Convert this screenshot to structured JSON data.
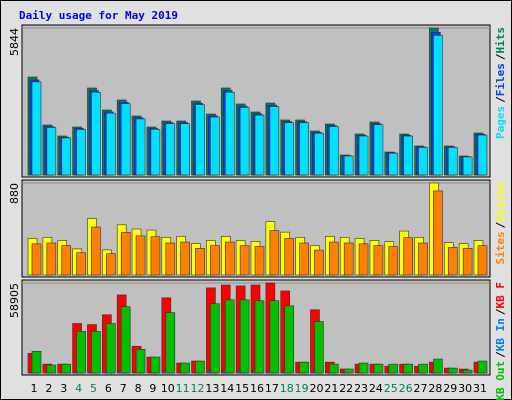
{
  "chart_data": [
    {
      "type": "bar",
      "title": "Daily usage for May 2019",
      "legend_separator": "/",
      "ylim": [
        0,
        5844
      ],
      "yticks": [
        5844
      ],
      "series": [
        {
          "name": "Hits",
          "color": "#00805c",
          "values": [
            3896,
            1988,
            1550,
            1908,
            3459,
            2584,
            2982,
            2346,
            1908,
            2147,
            2147,
            2942,
            2425,
            3459,
            2823,
            2505,
            2862,
            2187,
            2187,
            1749,
            2028,
            795,
            1630,
            2107,
            914,
            1630,
            1153,
            5844,
            1153,
            755,
            1670
          ]
        },
        {
          "name": "Files",
          "color": "#0040ff",
          "values": [
            3779,
            1928,
            1504,
            1851,
            3355,
            2506,
            2893,
            2276,
            1851,
            2083,
            2083,
            2854,
            2352,
            3355,
            2738,
            2430,
            2776,
            2121,
            2121,
            1697,
            1967,
            771,
            1581,
            2044,
            887,
            1581,
            1118,
            5669,
            1118,
            732,
            1620
          ]
        },
        {
          "name": "Pages",
          "color": "#00e0ff",
          "values": [
            3701,
            1889,
            1473,
            1813,
            3286,
            2455,
            2833,
            2229,
            1813,
            2040,
            2040,
            2795,
            2304,
            3286,
            2682,
            2380,
            2719,
            2078,
            2078,
            1662,
            1927,
            755,
            1549,
            2002,
            868,
            1549,
            1095,
            5552,
            1095,
            717,
            1587
          ]
        }
      ]
    },
    {
      "type": "bar",
      "legend_separator": "/",
      "ylim": [
        0,
        880
      ],
      "yticks": [
        880
      ],
      "series": [
        {
          "name": "Visits",
          "color": "#ffff00",
          "values": [
            350,
            360,
            330,
            250,
            540,
            240,
            480,
            440,
            430,
            360,
            370,
            300,
            330,
            370,
            330,
            320,
            510,
            410,
            360,
            280,
            370,
            360,
            350,
            330,
            320,
            420,
            360,
            880,
            310,
            300,
            330
          ]
        },
        {
          "name": "Sites",
          "color": "#ff8000",
          "values": [
            298,
            306,
            281,
            213,
            459,
            204,
            408,
            374,
            366,
            306,
            315,
            255,
            281,
            315,
            281,
            272,
            425,
            349,
            306,
            238,
            315,
            306,
            298,
            281,
            272,
            357,
            306,
            804,
            264,
            255,
            281
          ]
        }
      ]
    },
    {
      "type": "bar",
      "legend_separator": "/",
      "ylim": [
        0,
        58905
      ],
      "yticks": [
        58905
      ],
      "categories": [
        "1",
        "2",
        "3",
        "4",
        "5",
        "6",
        "7",
        "8",
        "9",
        "10",
        "11",
        "12",
        "13",
        "14",
        "15",
        "16",
        "17",
        "18",
        "19",
        "20",
        "21",
        "22",
        "23",
        "24",
        "25",
        "26",
        "27",
        "28",
        "29",
        "30",
        "31"
      ],
      "category_colors": [
        "#000000",
        "#000000",
        "#000000",
        "#00805c",
        "#00805c",
        "#000000",
        "#000000",
        "#000000",
        "#000000",
        "#000000",
        "#00805c",
        "#00805c",
        "#000000",
        "#000000",
        "#000000",
        "#000000",
        "#000000",
        "#00805c",
        "#00805c",
        "#000000",
        "#000000",
        "#000000",
        "#000000",
        "#000000",
        "#00805c",
        "#00805c",
        "#000000",
        "#000000",
        "#000000",
        "#000000",
        "#000000"
      ],
      "series": [
        {
          "name": "KB F",
          "color": "#ff0000",
          "values": [
            12900,
            5800,
            5800,
            32400,
            31700,
            38100,
            51100,
            17500,
            10400,
            49200,
            6500,
            7800,
            55700,
            57600,
            57000,
            57600,
            58905,
            53700,
            7100,
            41400,
            7100,
            2600,
            5800,
            5800,
            4500,
            5800,
            4500,
            7100,
            3200,
            2600,
            7100
          ]
        },
        {
          "name": "KB In",
          "color": "#0080ff",
          "values": [
            400,
            170,
            170,
            970,
            950,
            1140,
            1530,
            520,
            310,
            1480,
            200,
            230,
            1670,
            1730,
            1710,
            1730,
            1770,
            1610,
            210,
            1240,
            210,
            80,
            170,
            170,
            140,
            170,
            140,
            210,
            100,
            80,
            210
          ]
        },
        {
          "name": "KB Out",
          "color": "#00c000",
          "values": [
            14200,
            5200,
            5800,
            27200,
            27200,
            32400,
            43400,
            15500,
            10400,
            39500,
            6500,
            7800,
            45300,
            47900,
            47900,
            47300,
            47300,
            44000,
            7100,
            33700,
            5800,
            2600,
            6500,
            5800,
            5800,
            5800,
            5800,
            9100,
            3200,
            1900,
            7800
          ]
        }
      ]
    }
  ]
}
